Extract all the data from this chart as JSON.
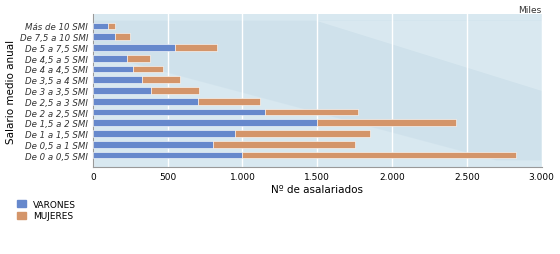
{
  "categories": [
    "De 0 a 0,5 SMI",
    "De 0,5 a 1 SMI",
    "De 1 a 1,5 SMI",
    "De 1,5 a 2 SMI",
    "De 2 a 2,5 SMI",
    "De 2,5 a 3 SMI",
    "De 3 a 3,5 SMI",
    "De 3,5 a 4 SMI",
    "De 4 a 4,5 SMI",
    "De 4,5 a 5 SMI",
    "De 5 a 7,5 SMI",
    "De 7,5 a 10 SMI",
    "Más de 10 SMI"
  ],
  "varones": [
    1000,
    800,
    950,
    1500,
    1150,
    700,
    390,
    330,
    270,
    230,
    550,
    150,
    100
  ],
  "mujeres": [
    1830,
    950,
    900,
    930,
    620,
    420,
    320,
    250,
    200,
    150,
    280,
    100,
    50
  ],
  "varones_color": "#6688CC",
  "mujeres_color": "#D4956A",
  "ylabel": "Salario medio anual",
  "xlabel": "Nº de asalariados",
  "xlim": [
    0,
    3000
  ],
  "xticks": [
    0,
    500,
    1000,
    1500,
    2000,
    2500,
    3000
  ],
  "xtick_labels": [
    "0",
    "500",
    "1.000",
    "1.500",
    "2.000",
    "2.500",
    "3.000"
  ],
  "miles_label": "Miles",
  "fig_bg_color": "#FFFFFF",
  "plot_bg_color": "#D8E8F0",
  "legend_varones": "VARONES",
  "legend_mujeres": "MUJERES"
}
